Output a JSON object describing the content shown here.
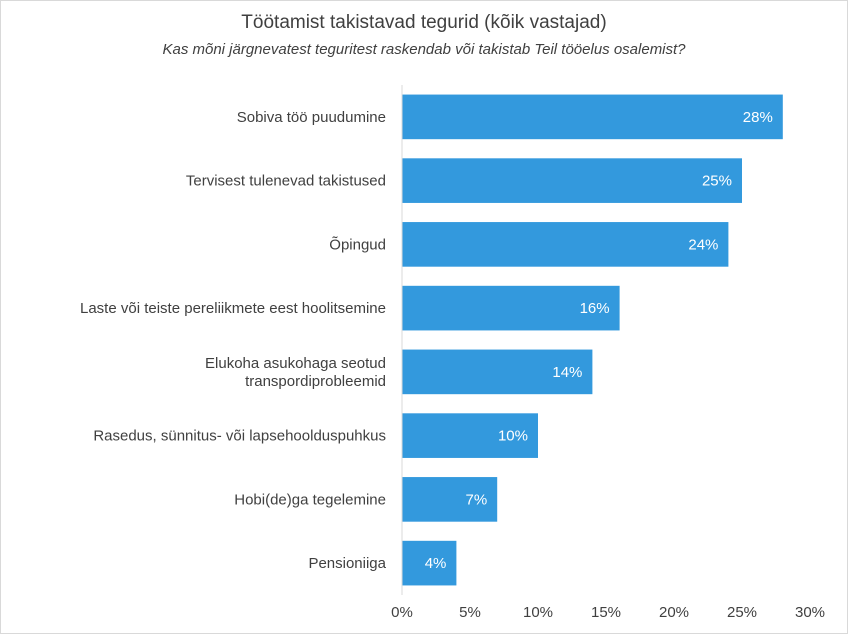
{
  "chart_data": {
    "type": "bar",
    "orientation": "horizontal",
    "title": "Töötamist takistavad tegurid (kõik vastajad)",
    "subtitle": "Kas mõni järgnevatest teguritest raskendab või takistab Teil tööelus osalemist?",
    "categories": [
      [
        "Sobiva töö puudumine"
      ],
      [
        "Tervisest tulenevad takistused"
      ],
      [
        "Õpingud"
      ],
      [
        "Laste või  teiste pereliikmete eest hoolitsemine"
      ],
      [
        "Elukoha asukohaga seotud",
        "transpordiprobleemid"
      ],
      [
        "Rasedus, sünnitus- või lapsehoolduspuhkus"
      ],
      [
        "Hobi(de)ga tegelemine"
      ],
      [
        "Pensioniiga"
      ]
    ],
    "values": [
      28,
      25,
      24,
      16,
      14,
      10,
      7,
      4
    ],
    "value_labels": [
      "28%",
      "25%",
      "24%",
      "16%",
      "14%",
      "10%",
      "7%",
      "4%"
    ],
    "xlim": [
      0,
      30
    ],
    "x_ticks": [
      0,
      5,
      10,
      15,
      20,
      25,
      30
    ],
    "x_tick_labels": [
      "0%",
      "5%",
      "10%",
      "15%",
      "20%",
      "25%",
      "30%"
    ],
    "bar_color": "#3399dd",
    "grid": false,
    "legend": "none"
  }
}
